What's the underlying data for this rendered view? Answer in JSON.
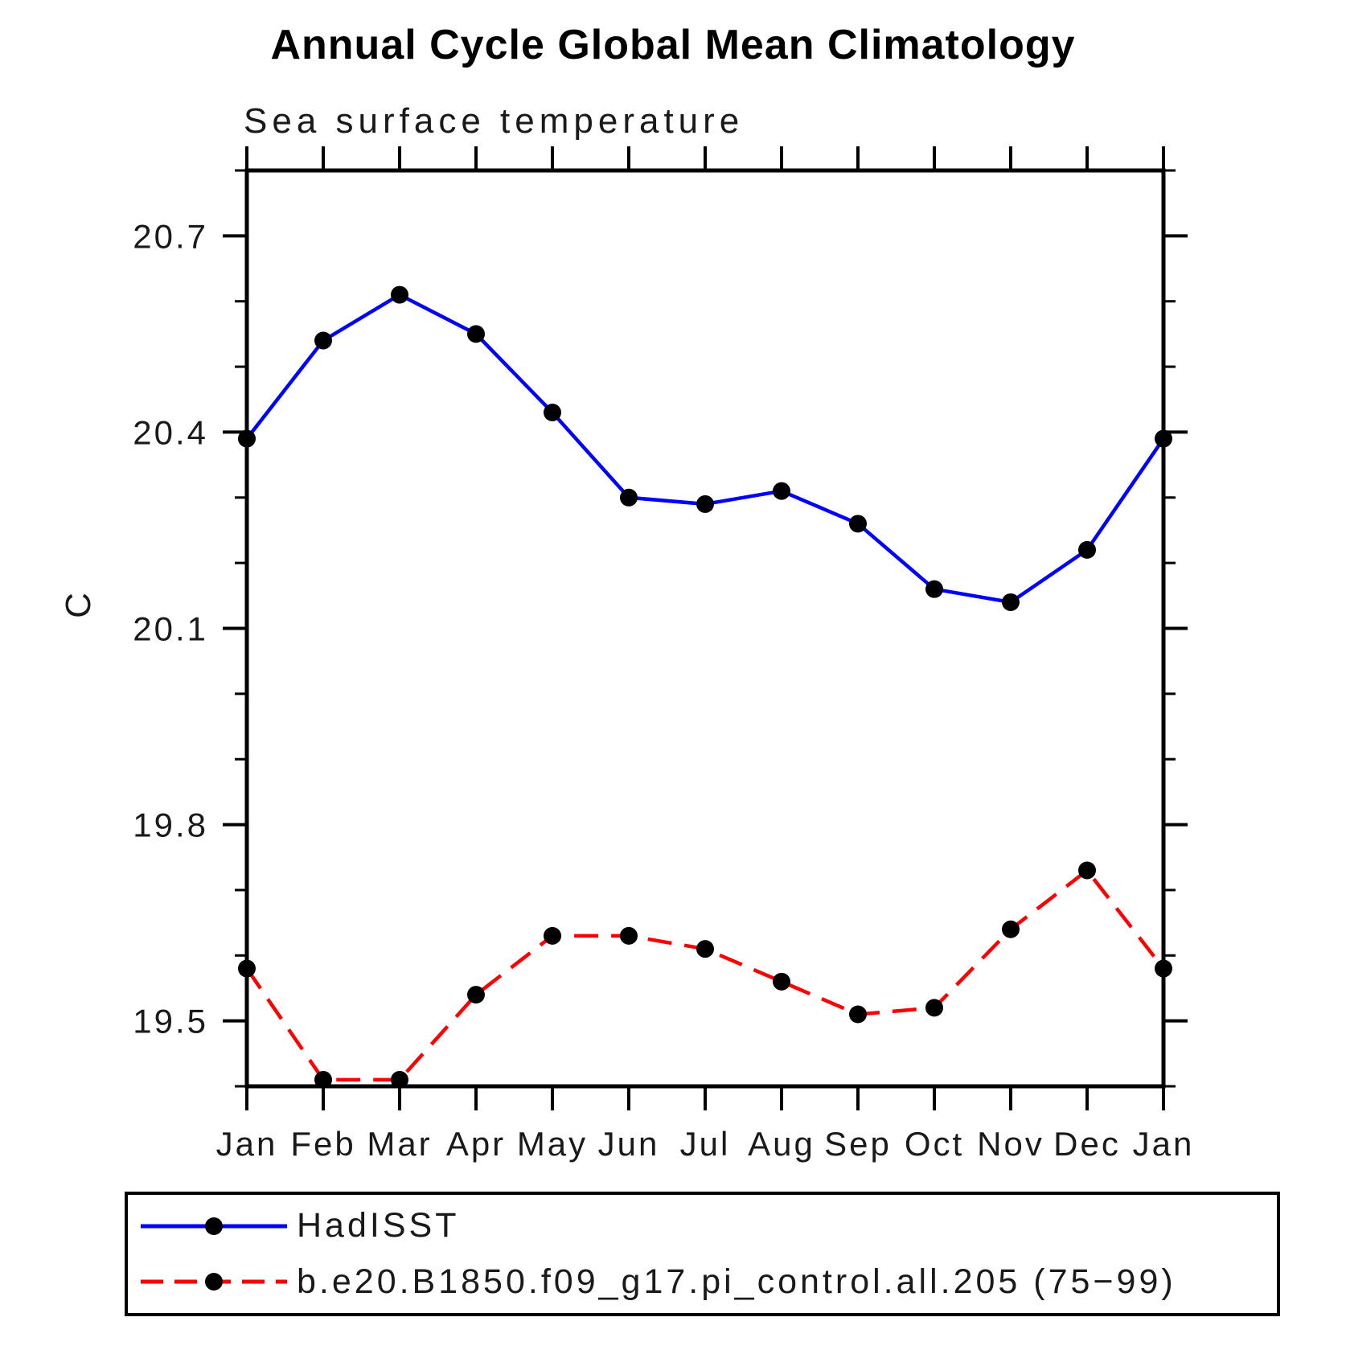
{
  "chart_data": {
    "type": "line",
    "title": "Annual Cycle Global Mean Climatology",
    "subtitle": "Sea surface temperature",
    "ylabel": "C",
    "categories": [
      "Jan",
      "Feb",
      "Mar",
      "Apr",
      "May",
      "Jun",
      "Jul",
      "Aug",
      "Sep",
      "Oct",
      "Nov",
      "Dec",
      "Jan"
    ],
    "series": [
      {
        "name": "HadISST",
        "color": "#0000ff",
        "style": "solid",
        "marker": "circle",
        "marker_color": "#000000",
        "values": [
          20.39,
          20.54,
          20.61,
          20.55,
          20.43,
          20.3,
          20.29,
          20.31,
          20.26,
          20.16,
          20.14,
          20.22,
          20.39
        ]
      },
      {
        "name": "b.e20.B1850.f09_g17.pi_control.all.205 (75−99)",
        "color": "#ff0000",
        "style": "dashed",
        "marker": "circle",
        "marker_color": "#000000",
        "values": [
          19.58,
          19.41,
          19.41,
          19.54,
          19.63,
          19.63,
          19.61,
          19.56,
          19.51,
          19.52,
          19.64,
          19.73,
          19.58
        ]
      }
    ],
    "ylim": [
      19.4,
      20.8
    ],
    "yticks_major": [
      19.5,
      19.8,
      20.1,
      20.4,
      20.7
    ],
    "ytick_labels": [
      "19.5",
      "19.8",
      "20.1",
      "20.4",
      "20.7"
    ],
    "yminor_step": 0.1,
    "grid": false,
    "legend_position": "bottom",
    "axis_color": "#000000",
    "background_color": "#ffffff"
  }
}
